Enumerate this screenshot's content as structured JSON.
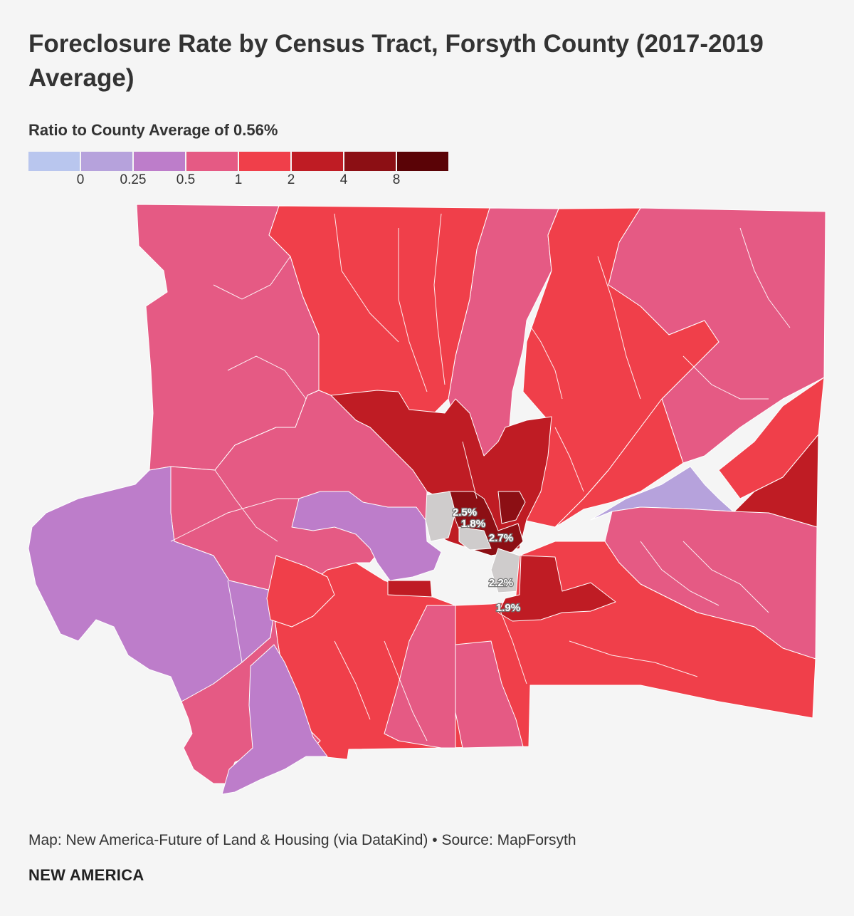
{
  "title": "Foreclosure Rate by Census Tract, Forsyth County (2017-2019 Average)",
  "legend": {
    "title": "Ratio to County Average of 0.56%",
    "colors": [
      "#b9c6ee",
      "#b6a2dc",
      "#bd7dca",
      "#e55a84",
      "#f03f4a",
      "#bf1c24",
      "#8c0f14",
      "#5a0306"
    ],
    "ticks": [
      "0",
      "0.25",
      "0.5",
      "1",
      "2",
      "4",
      "8"
    ]
  },
  "map": {
    "nodata_color": "#cfcccc",
    "labels": [
      "2.5%",
      "1.8%",
      "2.7%",
      "2.2%",
      "1.9%"
    ]
  },
  "credit": "Map: New America-Future of  Land & Housing (via DataKind) • Source: MapForsyth",
  "brand": "NEW AMERICA"
}
